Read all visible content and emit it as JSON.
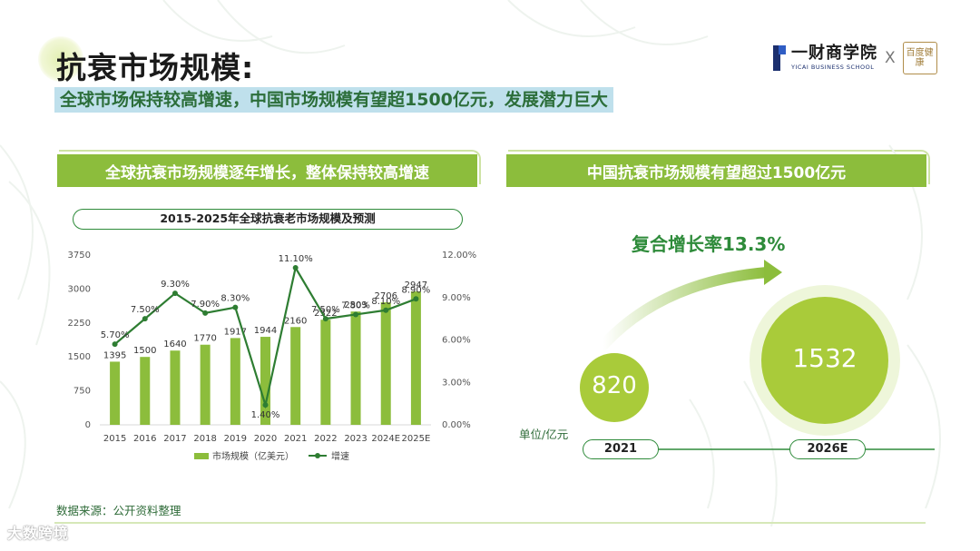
{
  "header": {
    "title": "抗衰市场规模:",
    "subtitle": "全球市场保持较高增速，中国市场规模有望超1500亿元，发展潜力巨大",
    "logo_cn": "一财商学院",
    "logo_en": "YICAI BUSINESS SCHOOL",
    "logo_separator": "X",
    "partner_logo": "百度健康"
  },
  "left_panel": {
    "banner": "全球抗衰市场规模逐年增长，整体保持较高增速",
    "chart_title": "2015-2025年全球抗衰老市场规模及预测"
  },
  "right_panel": {
    "banner": "中国抗衰市场规模有望超过1500亿元",
    "cagr_label": "复合增长率13.3%",
    "unit_label": "单位/亿元",
    "bubbles": [
      {
        "year": "2021",
        "value": "820"
      },
      {
        "year": "2026E",
        "value": "1532"
      }
    ]
  },
  "footer": {
    "source": "数据来源：公开资料整理",
    "watermark": "大数跨境"
  },
  "colors": {
    "bar": "#8cbd3c",
    "line": "#2e7d32",
    "banner": "#8cbd3c",
    "accent_text": "#2e8b3a"
  },
  "chart_data": {
    "type": "bar",
    "title": "2015-2025年全球抗衰老市场规模及预测",
    "categories": [
      "2015",
      "2016",
      "2017",
      "2018",
      "2019",
      "2020",
      "2021",
      "2022",
      "2023",
      "2024E",
      "2025E"
    ],
    "series": [
      {
        "name": "市场规模（亿美元）",
        "type": "bar",
        "axis": "left",
        "values": [
          1395,
          1500,
          1640,
          1770,
          1917,
          1944,
          2160,
          2322,
          2503,
          2706,
          2947
        ],
        "labels": [
          "1395",
          "1500",
          "1640",
          "1770",
          "1917",
          "1944",
          "2160",
          "2322",
          "2503",
          "2706",
          "2947"
        ]
      },
      {
        "name": "增速",
        "type": "line",
        "axis": "right",
        "values": [
          5.7,
          7.5,
          9.3,
          7.9,
          8.3,
          1.4,
          11.1,
          7.5,
          7.8,
          8.1,
          8.9
        ],
        "labels": [
          "5.70%",
          "7.50%",
          "9.30%",
          "7.90%",
          "8.30%",
          "1.40%",
          "11.10%",
          "7.50%",
          "7.80%",
          "8.10%",
          "8.90%"
        ]
      }
    ],
    "y_left": {
      "ticks": [
        "0",
        "750",
        "1500",
        "2250",
        "3000",
        "3750"
      ],
      "min": 0,
      "max": 3750
    },
    "y_right": {
      "ticks": [
        "0.00%",
        "3.00%",
        "6.00%",
        "9.00%",
        "12.00%"
      ],
      "min": 0,
      "max": 12
    },
    "legend": [
      "市场规模（亿美元）",
      "增速"
    ],
    "legend_position": "bottom",
    "grid": false
  }
}
